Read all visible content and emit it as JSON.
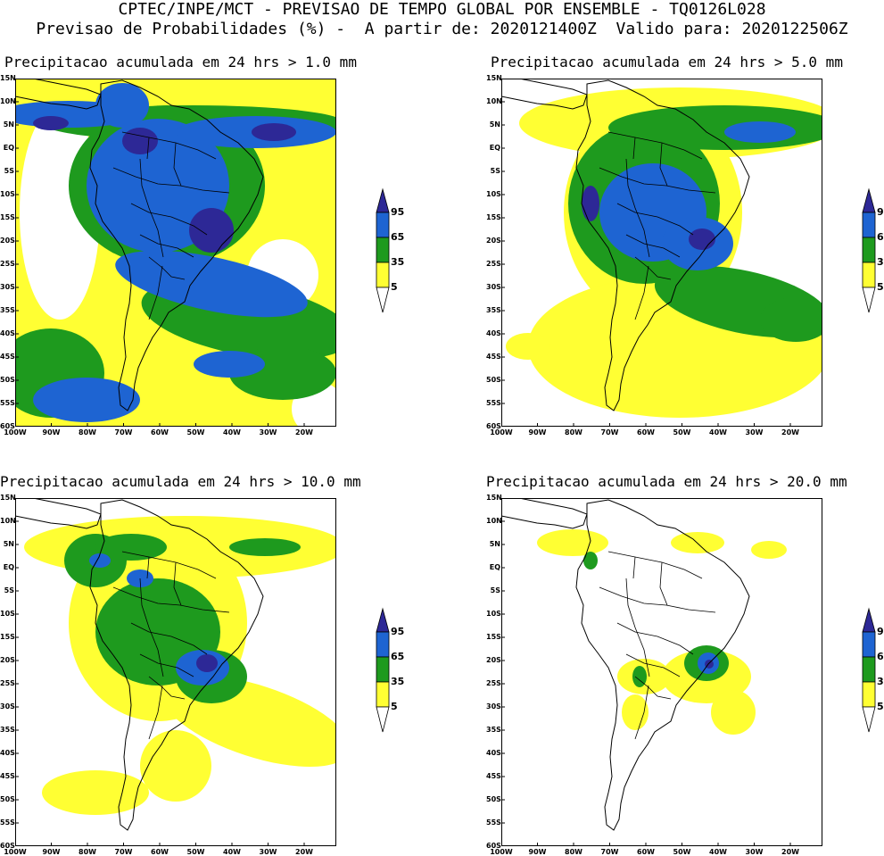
{
  "header": {
    "line1": "CPTEC/INPE/MCT - PREVISAO DE TEMPO GLOBAL POR ENSEMBLE - TQ0126L028",
    "line2": "Previsao de Probabilidades (%) -  A partir de: 2020121400Z  Valido para: 2020122506Z"
  },
  "colors": {
    "yellow": "#ffff33",
    "green": "#1e9a1e",
    "blue": "#1e64d2",
    "navy": "#2d2896",
    "land_line": "#000000"
  },
  "axes": {
    "lat_ticks": [
      "15N",
      "10N",
      "5N",
      "EQ",
      "5S",
      "10S",
      "15S",
      "20S",
      "25S",
      "30S",
      "35S",
      "40S",
      "45S",
      "50S",
      "55S",
      "60S"
    ],
    "lon_ticks": [
      "100W",
      "90W",
      "80W",
      "70W",
      "60W",
      "50W",
      "40W",
      "30W",
      "20W"
    ]
  },
  "legend": {
    "levels": [
      "95",
      "65",
      "35",
      "5"
    ]
  },
  "panels": [
    {
      "title": "Precipitacao acumulada em 24 hrs > 1.0 mm"
    },
    {
      "title": "Precipitacao acumulada em 24 hrs > 5.0 mm"
    },
    {
      "title": "Precipitacao acumulada em 24 hrs > 10.0 mm"
    },
    {
      "title": "Precipitacao acumulada em 24 hrs > 20.0 mm"
    }
  ]
}
